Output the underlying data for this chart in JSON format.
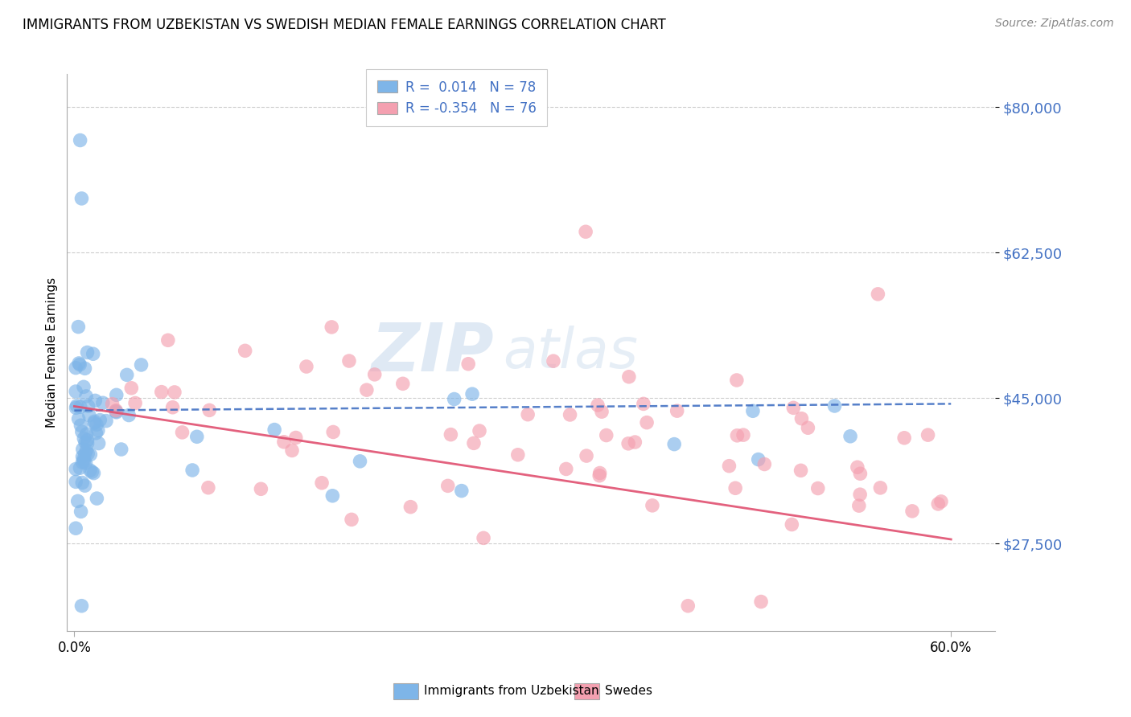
{
  "title": "IMMIGRANTS FROM UZBEKISTAN VS SWEDISH MEDIAN FEMALE EARNINGS CORRELATION CHART",
  "source": "Source: ZipAtlas.com",
  "ylabel": "Median Female Earnings",
  "watermark": "ZIPAtlas",
  "y_ticks": [
    27500,
    45000,
    62500,
    80000
  ],
  "y_tick_labels": [
    "$27,500",
    "$45,000",
    "$62,500",
    "$80,000"
  ],
  "xlim": [
    -0.005,
    0.63
  ],
  "ylim": [
    17000,
    84000
  ],
  "blue_R": 0.014,
  "blue_N": 78,
  "pink_R": -0.354,
  "pink_N": 76,
  "blue_color": "#7EB5E8",
  "pink_color": "#F4A0B0",
  "blue_line_color": "#4472C4",
  "pink_line_color": "#E05070",
  "legend_label_blue": "Immigrants from Uzbekistan",
  "legend_label_pink": "Swedes",
  "blue_trend_x": [
    0.0,
    0.6
  ],
  "blue_trend_y": [
    43500,
    44300
  ],
  "pink_trend_x": [
    0.0,
    0.6
  ],
  "pink_trend_y": [
    44000,
    28000
  ]
}
